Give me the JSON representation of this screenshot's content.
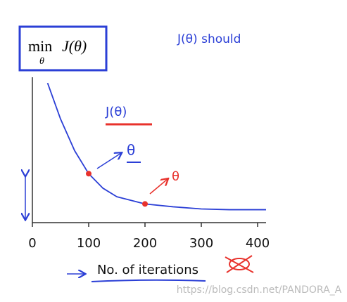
{
  "chart_data": {
    "type": "line",
    "title": {
      "operator": "min",
      "subscript": "θ",
      "expression": "J(θ)"
    },
    "x_label": "No. of iterations",
    "x": [
      27,
      50,
      75,
      100,
      125,
      150,
      200,
      250,
      300,
      350,
      415
    ],
    "values": [
      0.97,
      0.72,
      0.5,
      0.34,
      0.24,
      0.18,
      0.13,
      0.11,
      0.095,
      0.09,
      0.09
    ],
    "color": "#2b3fd6",
    "markers": {
      "x": [
        100,
        200
      ],
      "values": [
        0.34,
        0.13
      ],
      "color": "#e8322c"
    },
    "xlim": [
      0,
      415
    ],
    "xticks": [
      0,
      100,
      200,
      300,
      400
    ],
    "ylim": [
      0,
      1
    ],
    "annotations": {
      "top_note": "J(θ) should",
      "curve_label": "J(θ)",
      "blue_theta": "θ",
      "red_theta": "θ"
    },
    "watermark": "https://blog.csdn.net/PANDORA_A"
  }
}
